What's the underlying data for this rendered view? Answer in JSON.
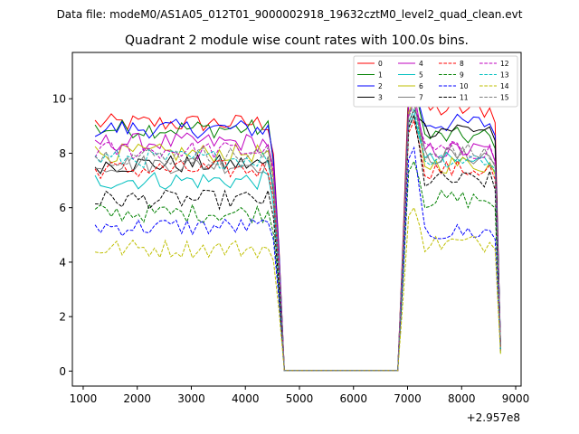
{
  "chart_data": {
    "type": "line",
    "suptitle": "Data file: modeM0/AS1A05_012T01_9000002918_19632cztM0_level2_quad_clean.evt",
    "title": "Quadrant 2 module wise count rates with 100.0s bins.",
    "xlabel": "",
    "ylabel": "",
    "x_offset_label": "+2.957e8",
    "xlim": [
      800,
      9100
    ],
    "ylim": [
      -0.55,
      11.7
    ],
    "xticks": [
      1000,
      2000,
      3000,
      4000,
      5000,
      6000,
      7000,
      8000,
      9000
    ],
    "yticks": [
      0,
      2,
      4,
      6,
      8,
      10
    ],
    "xtick_labels": [
      "1000",
      "2000",
      "3000",
      "4000",
      "5000",
      "6000",
      "7000",
      "8000",
      "9000"
    ],
    "ytick_labels": [
      "0",
      "2",
      "4",
      "6",
      "8",
      "10"
    ],
    "grid": false,
    "legend_position": "top-right",
    "segment1": {
      "x_start": 1220,
      "x_step": 100,
      "count": 35
    },
    "gap": {
      "x_start": 4720,
      "x_end": 6820,
      "value": 0.02
    },
    "segment2": {
      "x_start": 6920,
      "x_step": 100,
      "count": 19
    },
    "series": [
      {
        "name": "0",
        "color": "#ff0000",
        "dash": "solid",
        "level1": 9.1,
        "level2": 9.6,
        "peak2": 11.1
      },
      {
        "name": "1",
        "color": "#008000",
        "dash": "solid",
        "level1": 8.9,
        "level2": 8.6,
        "peak2": 10.6
      },
      {
        "name": "2",
        "color": "#0000ff",
        "dash": "solid",
        "level1": 8.9,
        "level2": 9.1,
        "peak2": 10.4
      },
      {
        "name": "3",
        "color": "#000000",
        "dash": "solid",
        "level1": 7.6,
        "level2": 8.9,
        "peak2": 9.6
      },
      {
        "name": "4",
        "color": "#bf00bf",
        "dash": "solid",
        "level1": 8.4,
        "level2": 8.1,
        "peak2": 10.2
      },
      {
        "name": "5",
        "color": "#00bfbf",
        "dash": "solid",
        "level1": 7.0,
        "level2": 7.7,
        "peak2": 9.4
      },
      {
        "name": "6",
        "color": "#bfbf00",
        "dash": "solid",
        "level1": 8.0,
        "level2": 7.6,
        "peak2": 10.0
      },
      {
        "name": "7",
        "color": "#808080",
        "dash": "solid",
        "level1": 7.6,
        "level2": 7.9,
        "peak2": 9.9
      },
      {
        "name": "8",
        "color": "#ff0000",
        "dash": "dashed",
        "level1": 7.4,
        "level2": 7.4,
        "peak2": 9.2
      },
      {
        "name": "9",
        "color": "#008000",
        "dash": "dashed",
        "level1": 5.8,
        "level2": 6.3,
        "peak2": 7.7
      },
      {
        "name": "10",
        "color": "#0000ff",
        "dash": "dashed",
        "level1": 5.3,
        "level2": 5.1,
        "peak2": 8.2
      },
      {
        "name": "11",
        "color": "#000000",
        "dash": "dashed",
        "level1": 6.3,
        "level2": 7.0,
        "peak2": 9.4
      },
      {
        "name": "12",
        "color": "#bf00bf",
        "dash": "dashed",
        "level1": 8.1,
        "level2": 8.1,
        "peak2": 9.9
      },
      {
        "name": "13",
        "color": "#00bfbf",
        "dash": "dashed",
        "level1": 7.8,
        "level2": 7.8,
        "peak2": 9.6
      },
      {
        "name": "14",
        "color": "#bfbf00",
        "dash": "dashed",
        "level1": 4.5,
        "level2": 4.7,
        "peak2": 6.0
      },
      {
        "name": "15",
        "color": "#808080",
        "dash": "dashed",
        "level1": 7.9,
        "level2": 8.0,
        "peak2": 9.8
      }
    ]
  }
}
